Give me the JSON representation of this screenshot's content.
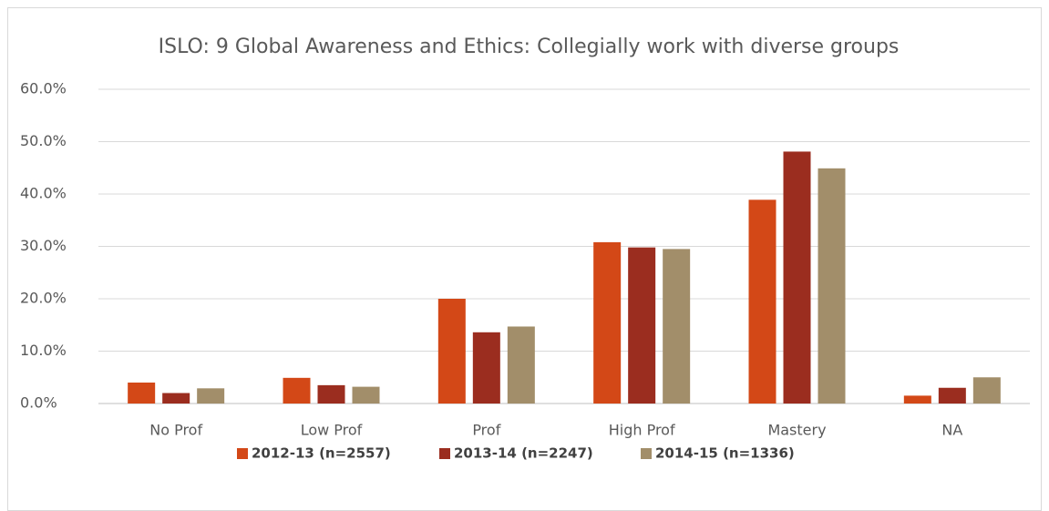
{
  "chart_data": {
    "type": "bar",
    "title": "ISLO:  9 Global Awareness and Ethics: Collegially work with diverse groups",
    "categories": [
      "No Prof",
      "Low Prof",
      "Prof",
      "High Prof",
      "Mastery",
      "NA"
    ],
    "series": [
      {
        "name": "2012-13 (n=2557)",
        "color": "#d34817",
        "values": [
          4.0,
          4.9,
          20.0,
          30.8,
          38.9,
          1.5
        ]
      },
      {
        "name": "2013-14 (n=2247)",
        "color": "#9b2d1f",
        "values": [
          2.0,
          3.5,
          13.6,
          29.8,
          48.1,
          3.0
        ]
      },
      {
        "name": "2014-15 (n=1336)",
        "color": "#a28e6a",
        "values": [
          2.9,
          3.2,
          14.7,
          29.5,
          44.9,
          5.0
        ]
      }
    ],
    "ylim": [
      0,
      60
    ],
    "yticks": [
      {
        "value": 0,
        "label": "0.0%"
      },
      {
        "value": 10,
        "label": "10.0%"
      },
      {
        "value": 20,
        "label": "20.0%"
      },
      {
        "value": 30,
        "label": "30.0%"
      },
      {
        "value": 40,
        "label": "40.0%"
      },
      {
        "value": 50,
        "label": "50.0%"
      },
      {
        "value": 60,
        "label": "60.0%"
      }
    ],
    "grid": true,
    "legend": "bottom"
  }
}
